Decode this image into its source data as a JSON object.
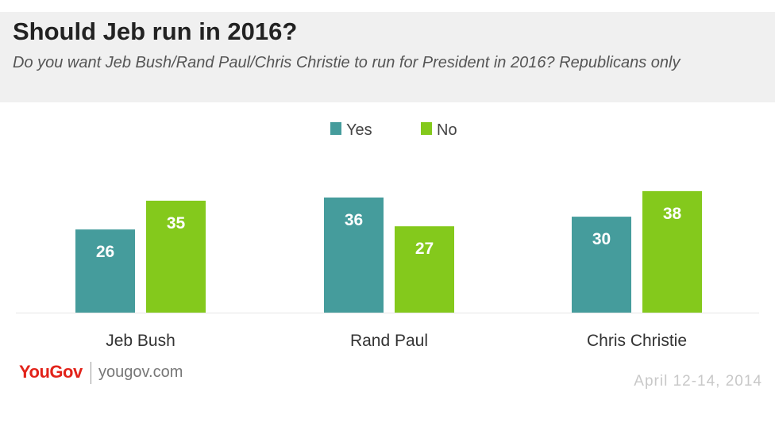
{
  "chart_data": {
    "type": "bar",
    "title": "Should Jeb run in 2016?",
    "subtitle": "Do you want Jeb Bush/Rand Paul/Chris Christie to run for President in 2016? Republicans only",
    "categories": [
      "Jeb Bush",
      "Rand Paul",
      "Chris Christie"
    ],
    "series": [
      {
        "name": "Yes",
        "values": [
          26,
          36,
          30
        ],
        "color": "#459c9c"
      },
      {
        "name": "No",
        "values": [
          35,
          27,
          38
        ],
        "color": "#84c91c"
      }
    ],
    "legend": "top-center",
    "grid": false,
    "show_y_axis": false
  },
  "footer": {
    "logo": "YouGov",
    "url": "yougov.com",
    "date": "April 12-14, 2014"
  },
  "colors": {
    "header_background": "#f0f0f0",
    "brand_red": "#e2231a",
    "value_label": "#ffffff"
  }
}
